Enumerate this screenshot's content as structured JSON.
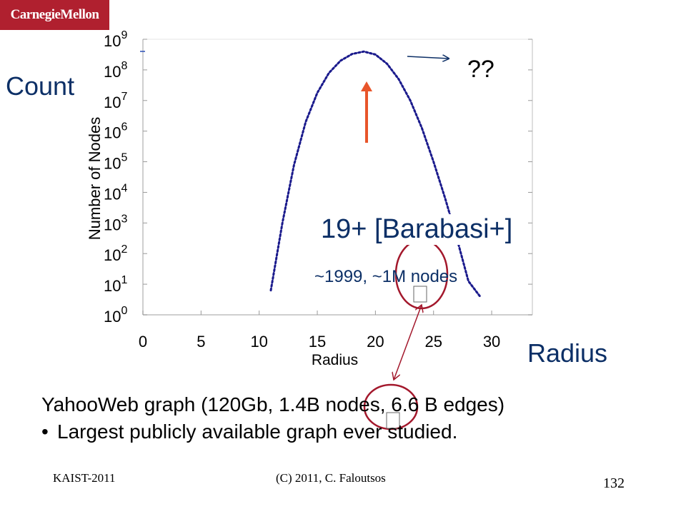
{
  "header": {
    "logo_text": "CarnegieMellon"
  },
  "annotations": {
    "count": "Count",
    "radius": "Radius",
    "question": "??",
    "barabasi": "19+ [Barabasi+]",
    "year_nodes": "~1999, ~1M nodes"
  },
  "caption": {
    "line1": "YahooWeb graph  (120Gb, 1.4B nodes, 6.6 B edges)",
    "bullet": "•",
    "line2": "Largest publicly available graph ever studied."
  },
  "footer": {
    "left": "KAIST-2011",
    "center": "(C) 2011, C. Faloutsos",
    "page": "132"
  },
  "colors": {
    "brand": "#b0202f",
    "annotation": "#0c2f66",
    "curve": "#1a1a8c",
    "arrow": "#e8552a",
    "circle": "#a3182c"
  },
  "chart_data": {
    "type": "line",
    "title": "",
    "xlabel": "Radius",
    "ylabel": "Number of Nodes",
    "x_ticks": [
      "0",
      "5",
      "10",
      "15",
      "20",
      "25",
      "30"
    ],
    "y_ticks": [
      {
        "base": "10",
        "exp": "0"
      },
      {
        "base": "10",
        "exp": "1"
      },
      {
        "base": "10",
        "exp": "2"
      },
      {
        "base": "10",
        "exp": "3"
      },
      {
        "base": "10",
        "exp": "4"
      },
      {
        "base": "10",
        "exp": "5"
      },
      {
        "base": "10",
        "exp": "6"
      },
      {
        "base": "10",
        "exp": "7"
      },
      {
        "base": "10",
        "exp": "8"
      },
      {
        "base": "10",
        "exp": "9"
      }
    ],
    "xlim": [
      0,
      33.5
    ],
    "ylim": [
      0,
      9
    ],
    "y_scale": "log10",
    "grid": false,
    "series": [
      {
        "style": "dotted",
        "points": [
          [
            11,
            0.8
          ],
          [
            12,
            3.0
          ],
          [
            13,
            4.9
          ],
          [
            14,
            6.3
          ],
          [
            15,
            7.25
          ],
          [
            16,
            7.9
          ],
          [
            17,
            8.3
          ],
          [
            18,
            8.52
          ],
          [
            19,
            8.6
          ],
          [
            20,
            8.5
          ],
          [
            21,
            8.2
          ],
          [
            22,
            7.7
          ],
          [
            23,
            7.0
          ],
          [
            24,
            6.1
          ],
          [
            25,
            5.0
          ],
          [
            26,
            3.8
          ],
          [
            27,
            2.5
          ],
          [
            28,
            1.1
          ],
          [
            29,
            0.6
          ]
        ]
      }
    ]
  }
}
